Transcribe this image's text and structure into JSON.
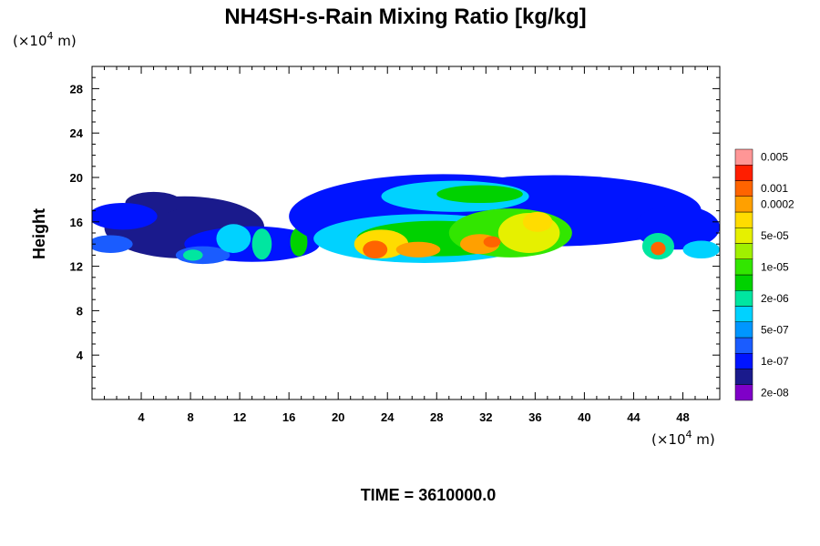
{
  "chart_data": {
    "type": "heatmap",
    "title": "NH4SH-s-Rain Mixing Ratio [kg/kg]",
    "ylabel": "Height",
    "xlabel": "",
    "x_unit_prefix": "(×10",
    "x_unit_exp": "4",
    "x_unit_suffix": " m)",
    "y_unit_prefix": "(×10",
    "y_unit_exp": "4",
    "y_unit_suffix": " m)",
    "xlim": [
      0,
      51
    ],
    "ylim": [
      0,
      30
    ],
    "x_ticks": [
      4,
      8,
      12,
      16,
      20,
      24,
      28,
      32,
      36,
      40,
      44,
      48
    ],
    "x_tick_labels": [
      "4",
      "8",
      "12",
      "16",
      "20",
      "24",
      "28",
      "32",
      "36",
      "40",
      "44",
      "48"
    ],
    "y_ticks": [
      4,
      8,
      12,
      16,
      20,
      24,
      28
    ],
    "y_tick_labels": [
      "4",
      "8",
      "12",
      "16",
      "20",
      "24",
      "28"
    ],
    "time_label": "TIME = 3610000.0",
    "colorbar": {
      "colors": [
        "#7f00c8",
        "#1a1a8c",
        "#0014ff",
        "#1a5cff",
        "#0096ff",
        "#00d2ff",
        "#00e6a0",
        "#00d200",
        "#32e600",
        "#a0f000",
        "#e6f000",
        "#ffdc00",
        "#ffa000",
        "#ff6400",
        "#ff1e00",
        "#ff9696"
      ],
      "labels": [
        "2e-08",
        "1e-07",
        "5e-07",
        "2e-06",
        "1e-05",
        "5e-05",
        "0.0002",
        "0.001",
        "0.005"
      ],
      "label_levels": [
        0,
        2,
        4,
        6,
        8,
        10,
        12,
        13,
        15
      ]
    },
    "blobs": [
      {
        "x": 7.5,
        "y": 15.5,
        "rx": 6.5,
        "ry": 2.8,
        "level": 1
      },
      {
        "x": 5.0,
        "y": 17.7,
        "rx": 2.3,
        "ry": 1.0,
        "level": 1
      },
      {
        "x": 2.5,
        "y": 16.5,
        "rx": 2.8,
        "ry": 1.2,
        "level": 2
      },
      {
        "x": 1.5,
        "y": 14.0,
        "rx": 1.8,
        "ry": 0.8,
        "level": 3
      },
      {
        "x": 13.0,
        "y": 14.0,
        "rx": 5.5,
        "ry": 1.6,
        "level": 2
      },
      {
        "x": 9.0,
        "y": 13.0,
        "rx": 2.2,
        "ry": 0.8,
        "level": 3
      },
      {
        "x": 11.5,
        "y": 14.5,
        "rx": 1.4,
        "ry": 1.3,
        "level": 5
      },
      {
        "x": 13.8,
        "y": 14.0,
        "rx": 0.8,
        "ry": 1.4,
        "level": 6
      },
      {
        "x": 16.8,
        "y": 14.2,
        "rx": 0.7,
        "ry": 1.3,
        "level": 7
      },
      {
        "x": 8.2,
        "y": 13.0,
        "rx": 0.8,
        "ry": 0.5,
        "level": 6
      },
      {
        "x": 28.5,
        "y": 16.5,
        "rx": 12.5,
        "ry": 3.8,
        "level": 2
      },
      {
        "x": 37.5,
        "y": 17.0,
        "rx": 12.0,
        "ry": 3.2,
        "level": 2
      },
      {
        "x": 47.5,
        "y": 15.5,
        "rx": 3.5,
        "ry": 2.0,
        "level": 2
      },
      {
        "x": 29.5,
        "y": 18.3,
        "rx": 6.0,
        "ry": 1.4,
        "level": 5
      },
      {
        "x": 31.5,
        "y": 18.5,
        "rx": 3.5,
        "ry": 0.8,
        "level": 7
      },
      {
        "x": 27.0,
        "y": 14.5,
        "rx": 9.0,
        "ry": 2.2,
        "level": 5
      },
      {
        "x": 28.0,
        "y": 14.5,
        "rx": 6.5,
        "ry": 1.6,
        "level": 7
      },
      {
        "x": 34.0,
        "y": 15.0,
        "rx": 5.0,
        "ry": 2.2,
        "level": 8
      },
      {
        "x": 35.5,
        "y": 15.0,
        "rx": 2.5,
        "ry": 1.8,
        "level": 10
      },
      {
        "x": 36.2,
        "y": 16.0,
        "rx": 1.2,
        "ry": 0.9,
        "level": 11
      },
      {
        "x": 23.5,
        "y": 14.0,
        "rx": 2.2,
        "ry": 1.3,
        "level": 11
      },
      {
        "x": 23.0,
        "y": 13.5,
        "rx": 1.0,
        "ry": 0.8,
        "level": 13
      },
      {
        "x": 26.5,
        "y": 13.5,
        "rx": 1.8,
        "ry": 0.7,
        "level": 12
      },
      {
        "x": 31.5,
        "y": 14.0,
        "rx": 1.6,
        "ry": 0.9,
        "level": 12
      },
      {
        "x": 32.5,
        "y": 14.2,
        "rx": 0.7,
        "ry": 0.5,
        "level": 13
      },
      {
        "x": 46.0,
        "y": 13.8,
        "rx": 1.3,
        "ry": 1.2,
        "level": 6
      },
      {
        "x": 46.0,
        "y": 13.6,
        "rx": 0.6,
        "ry": 0.6,
        "level": 13
      },
      {
        "x": 49.5,
        "y": 13.5,
        "rx": 1.5,
        "ry": 0.8,
        "level": 5
      }
    ]
  }
}
